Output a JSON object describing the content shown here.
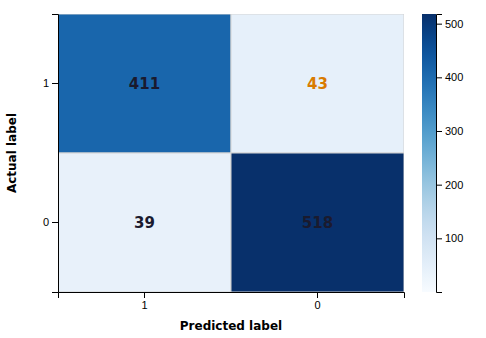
{
  "chart_data": {
    "type": "heatmap",
    "xlabel": "Predicted label",
    "ylabel": "Actual label",
    "categories": [
      "1",
      "0"
    ],
    "y_categories": [
      "1",
      "0"
    ],
    "matrix": [
      [
        411,
        43
      ],
      [
        39,
        518
      ]
    ],
    "color": "Blues",
    "colorbar_range": [
      0,
      518
    ],
    "colorbar_ticks": [
      100,
      200,
      300,
      400,
      500
    ],
    "colors": [
      [
        "#1a1a2e",
        "#d97b00"
      ],
      [
        "#1a1a2e",
        "#1a1a2e"
      ]
    ],
    "data_labels": true,
    "grid": true
  }
}
